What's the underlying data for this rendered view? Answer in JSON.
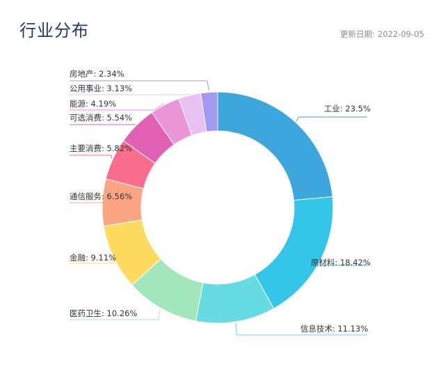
{
  "header": {
    "title": "行业分布",
    "update_label": "更新日期:",
    "update_date": "2022-09-05"
  },
  "chart_data": {
    "type": "pie",
    "donut": true,
    "slices": [
      {
        "label": "工业: 23.5%",
        "name": "工业",
        "value": 23.5,
        "color": "#3ca6dd"
      },
      {
        "label": "原材料: 18.42%",
        "name": "原材料",
        "value": 18.42,
        "color": "#33c6e8"
      },
      {
        "label": "信息技术: 11.13%",
        "name": "信息技术",
        "value": 11.13,
        "color": "#66dce2"
      },
      {
        "label": "医药卫生: 10.26%",
        "name": "医药卫生",
        "value": 10.26,
        "color": "#a2e6bc"
      },
      {
        "label": "金融: 9.11%",
        "name": "金融",
        "value": 9.11,
        "color": "#fddb5e"
      },
      {
        "label": "通信服务: 6.56%",
        "name": "通信服务",
        "value": 6.56,
        "color": "#fca585"
      },
      {
        "label": "主要消费: 5.82%",
        "name": "主要消费",
        "value": 5.82,
        "color": "#fb6d8c"
      },
      {
        "label": "可选消费: 5.54%",
        "name": "可选消费",
        "value": 5.54,
        "color": "#e061b3"
      },
      {
        "label": "能源: 4.19%",
        "name": "能源",
        "value": 4.19,
        "color": "#e995d6"
      },
      {
        "label": "公用事业: 3.13%",
        "name": "公用事业",
        "value": 3.13,
        "color": "#e9c0f2"
      },
      {
        "label": "房地产: 2.34%",
        "name": "房地产",
        "value": 2.34,
        "color": "#a29af0"
      }
    ]
  }
}
